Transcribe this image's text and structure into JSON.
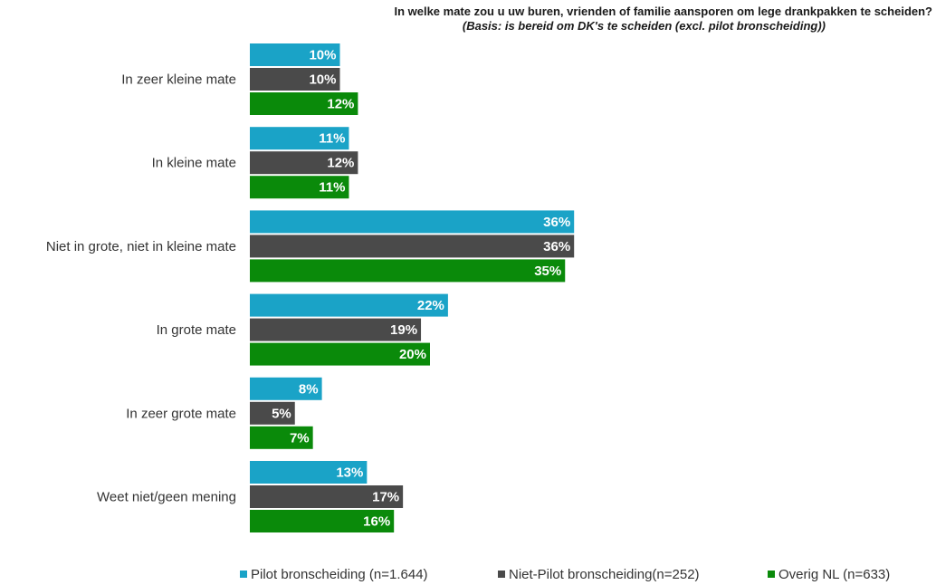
{
  "title": "In welke mate zou u uw buren, vrienden of familie  aansporen om lege drankpakken te scheiden?",
  "subtitle": "(Basis: is bereid om DK's te scheiden (excl. pilot bronscheiding))",
  "colors": {
    "pilot": "#1aa3c7",
    "niet_pilot": "#4a4a4a",
    "overig": "#0a8a0a"
  },
  "legend": [
    {
      "label": "Pilot bronscheiding  (n=1.644)",
      "color": "#1aa3c7"
    },
    {
      "label": "Niet-Pilot bronscheiding(n=252)",
      "color": "#4a4a4a"
    },
    {
      "label": "Overig NL  (n=633)",
      "color": "#0a8a0a"
    }
  ],
  "chart_data": {
    "type": "bar",
    "orientation": "horizontal",
    "title": "In welke mate zou u uw buren, vrienden of familie  aansporen om lege drankpakken te scheiden?",
    "subtitle": "(Basis: is bereid om DK's te scheiden (excl. pilot bronscheiding))",
    "categories": [
      "In zeer kleine mate",
      "In kleine mate",
      "Niet in grote, niet in kleine mate",
      "In grote mate",
      "In zeer grote mate",
      "Weet niet/geen mening"
    ],
    "series": [
      {
        "name": "Pilot bronscheiding  (n=1.644)",
        "color": "#1aa3c7",
        "values": [
          10,
          11,
          36,
          22,
          8,
          13
        ]
      },
      {
        "name": "Niet-Pilot bronscheiding(n=252)",
        "color": "#4a4a4a",
        "values": [
          10,
          12,
          36,
          19,
          5,
          17
        ]
      },
      {
        "name": "Overig NL  (n=633)",
        "color": "#0a8a0a",
        "values": [
          12,
          11,
          35,
          20,
          7,
          16
        ]
      }
    ],
    "value_suffix": "%",
    "xlim": [
      0,
      100
    ],
    "grid": false,
    "legend_position": "bottom"
  }
}
